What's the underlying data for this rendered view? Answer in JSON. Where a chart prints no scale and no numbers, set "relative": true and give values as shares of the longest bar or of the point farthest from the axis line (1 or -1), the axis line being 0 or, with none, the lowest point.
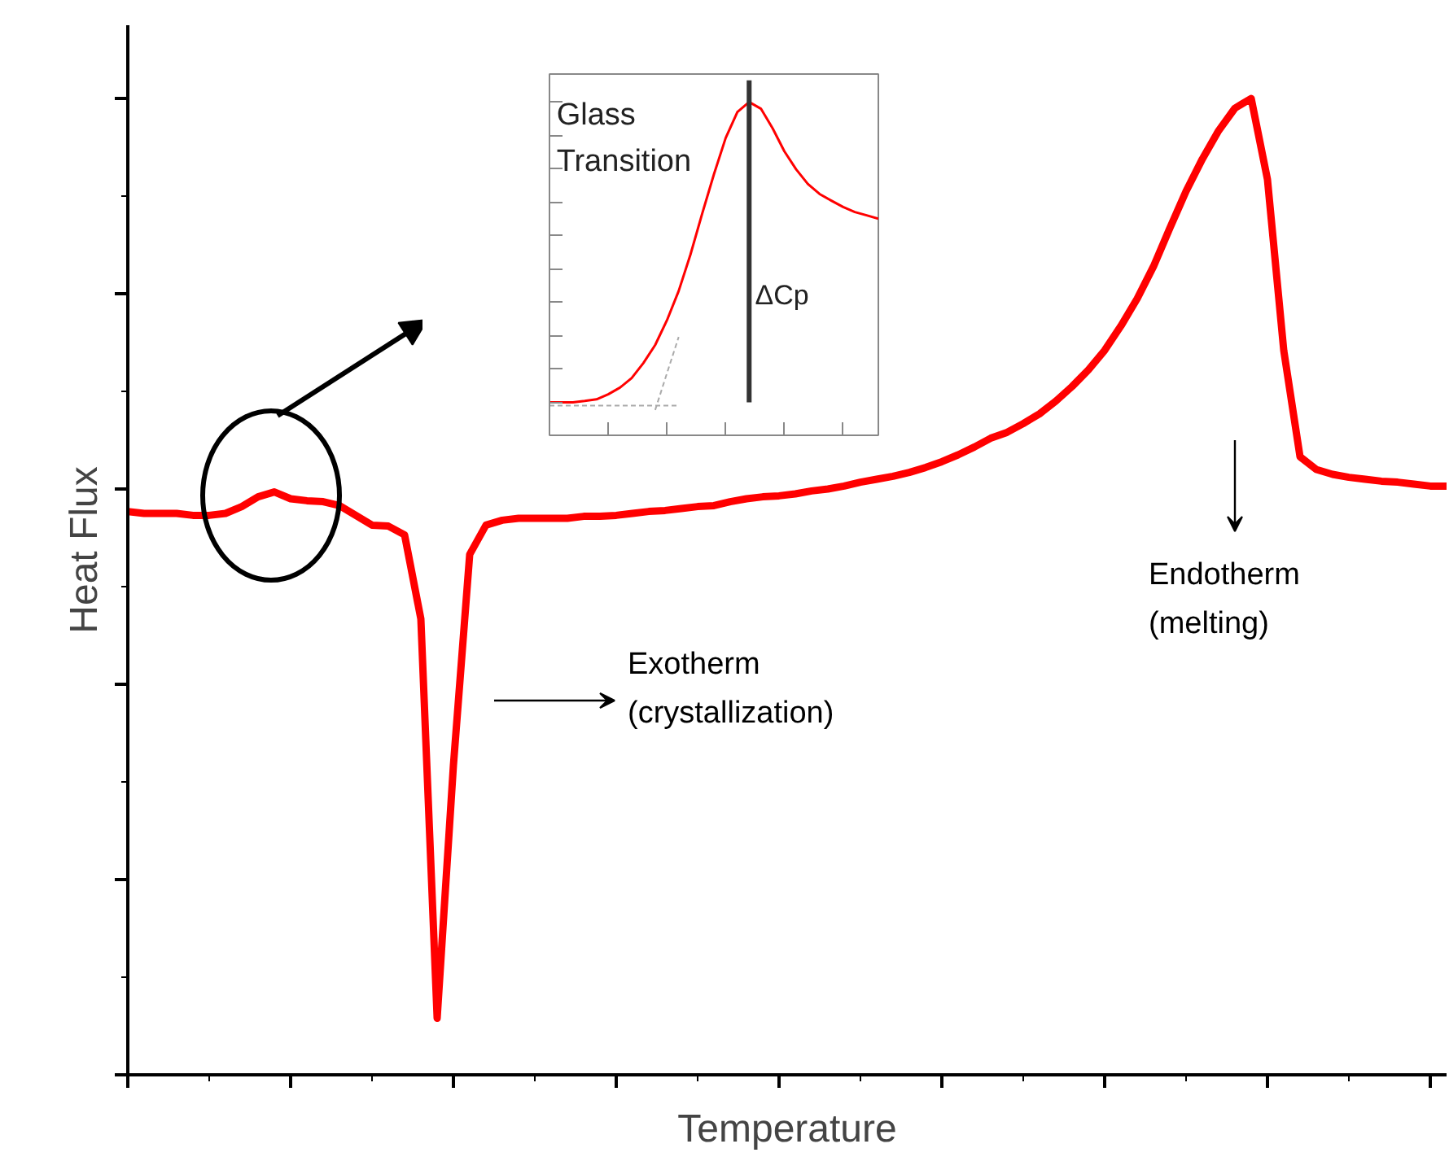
{
  "chart_data": [
    {
      "type": "line",
      "relative": true,
      "xlabel": "Temperature",
      "ylabel": "Heat Flux",
      "grid": false,
      "line_style": "solid",
      "categories": [
        null,
        null,
        null,
        null,
        null,
        null,
        null,
        null,
        null,
        null,
        null,
        null,
        null,
        null,
        null,
        null,
        null,
        null,
        null,
        null,
        null,
        null,
        null,
        null,
        null,
        null,
        null,
        null,
        null,
        null,
        null,
        null,
        null,
        null,
        null,
        null,
        null,
        null,
        null,
        null,
        null,
        null,
        null,
        null,
        null,
        null,
        null,
        null,
        null,
        null,
        null,
        null,
        null,
        null,
        null,
        null,
        null,
        null,
        null,
        null,
        null,
        null,
        null,
        null,
        null,
        null,
        null,
        null,
        null,
        null,
        null,
        null,
        null,
        null,
        null,
        null,
        null,
        null,
        null,
        null,
        null,
        null
      ],
      "series": [
        {
          "color": "#ff0000",
          "values": [
            0.577,
            0.575,
            0.575,
            0.575,
            0.573,
            0.573,
            0.575,
            0.582,
            0.592,
            0.597,
            0.59,
            0.588,
            0.587,
            0.583,
            0.573,
            0.563,
            0.562,
            0.553,
            0.467,
            0.058,
            0.317,
            0.533,
            0.563,
            0.568,
            0.57,
            0.57,
            0.57,
            0.57,
            0.572,
            0.572,
            0.573,
            0.575,
            0.577,
            0.578,
            0.58,
            0.582,
            0.583,
            0.587,
            0.59,
            0.592,
            0.593,
            0.595,
            0.598,
            0.6,
            0.603,
            0.607,
            0.61,
            0.613,
            0.617,
            0.622,
            0.628,
            0.635,
            0.643,
            0.652,
            0.658,
            0.667,
            0.677,
            0.69,
            0.705,
            0.722,
            0.742,
            0.767,
            0.795,
            0.828,
            0.867,
            0.905,
            0.938,
            0.967,
            0.99,
            1,
            0.917,
            0.742,
            0.633,
            0.62,
            0.615,
            0.612,
            0.61,
            0.608,
            0.607,
            0.605,
            0.603,
            0.603
          ]
        }
      ],
      "annotations": [
        "Exotherm (crystallization)",
        "Endotherm (melting)"
      ]
    },
    {
      "type": "line",
      "relative": true,
      "grid": false,
      "line_style": "solid",
      "categories": [
        null,
        null,
        null,
        null,
        null,
        null,
        null,
        null,
        null,
        null,
        null,
        null,
        null,
        null,
        null,
        null,
        null,
        null,
        null,
        null,
        null,
        null,
        null,
        null,
        null,
        null,
        null,
        null,
        null
      ],
      "series": [
        {
          "color": "#ff0000",
          "values": [
            0.099,
            0.099,
            0.099,
            0.103,
            0.108,
            0.123,
            0.143,
            0.172,
            0.217,
            0.271,
            0.345,
            0.433,
            0.542,
            0.665,
            0.783,
            0.892,
            0.97,
            1,
            0.98,
            0.921,
            0.852,
            0.798,
            0.754,
            0.724,
            0.704,
            0.685,
            0.67,
            0.66,
            0.65
          ]
        },
        {
          "color": "#aaaaaa",
          "line_style": "dashed",
          "values": [
            0.089,
            0.089,
            0.089,
            0.089,
            0.089,
            0.089,
            0.089,
            0.089,
            0.089,
            0.089,
            0.089,
            0.089,
            null,
            null,
            null,
            null,
            null,
            null,
            null,
            null,
            null,
            null,
            null,
            null,
            null,
            null,
            null,
            null,
            null
          ]
        },
        {
          "color": "#aaaaaa",
          "line_style": "dashed",
          "values": [
            null,
            null,
            null,
            null,
            null,
            null,
            null,
            null,
            null,
            0.076,
            0.186,
            0.295,
            null,
            null,
            null,
            null,
            null,
            null,
            null,
            null,
            null,
            null,
            null,
            null,
            null,
            null,
            null,
            null,
            null
          ]
        }
      ],
      "annotations": [
        "Glass Transition",
        "ΔCp"
      ]
    }
  ]
}
